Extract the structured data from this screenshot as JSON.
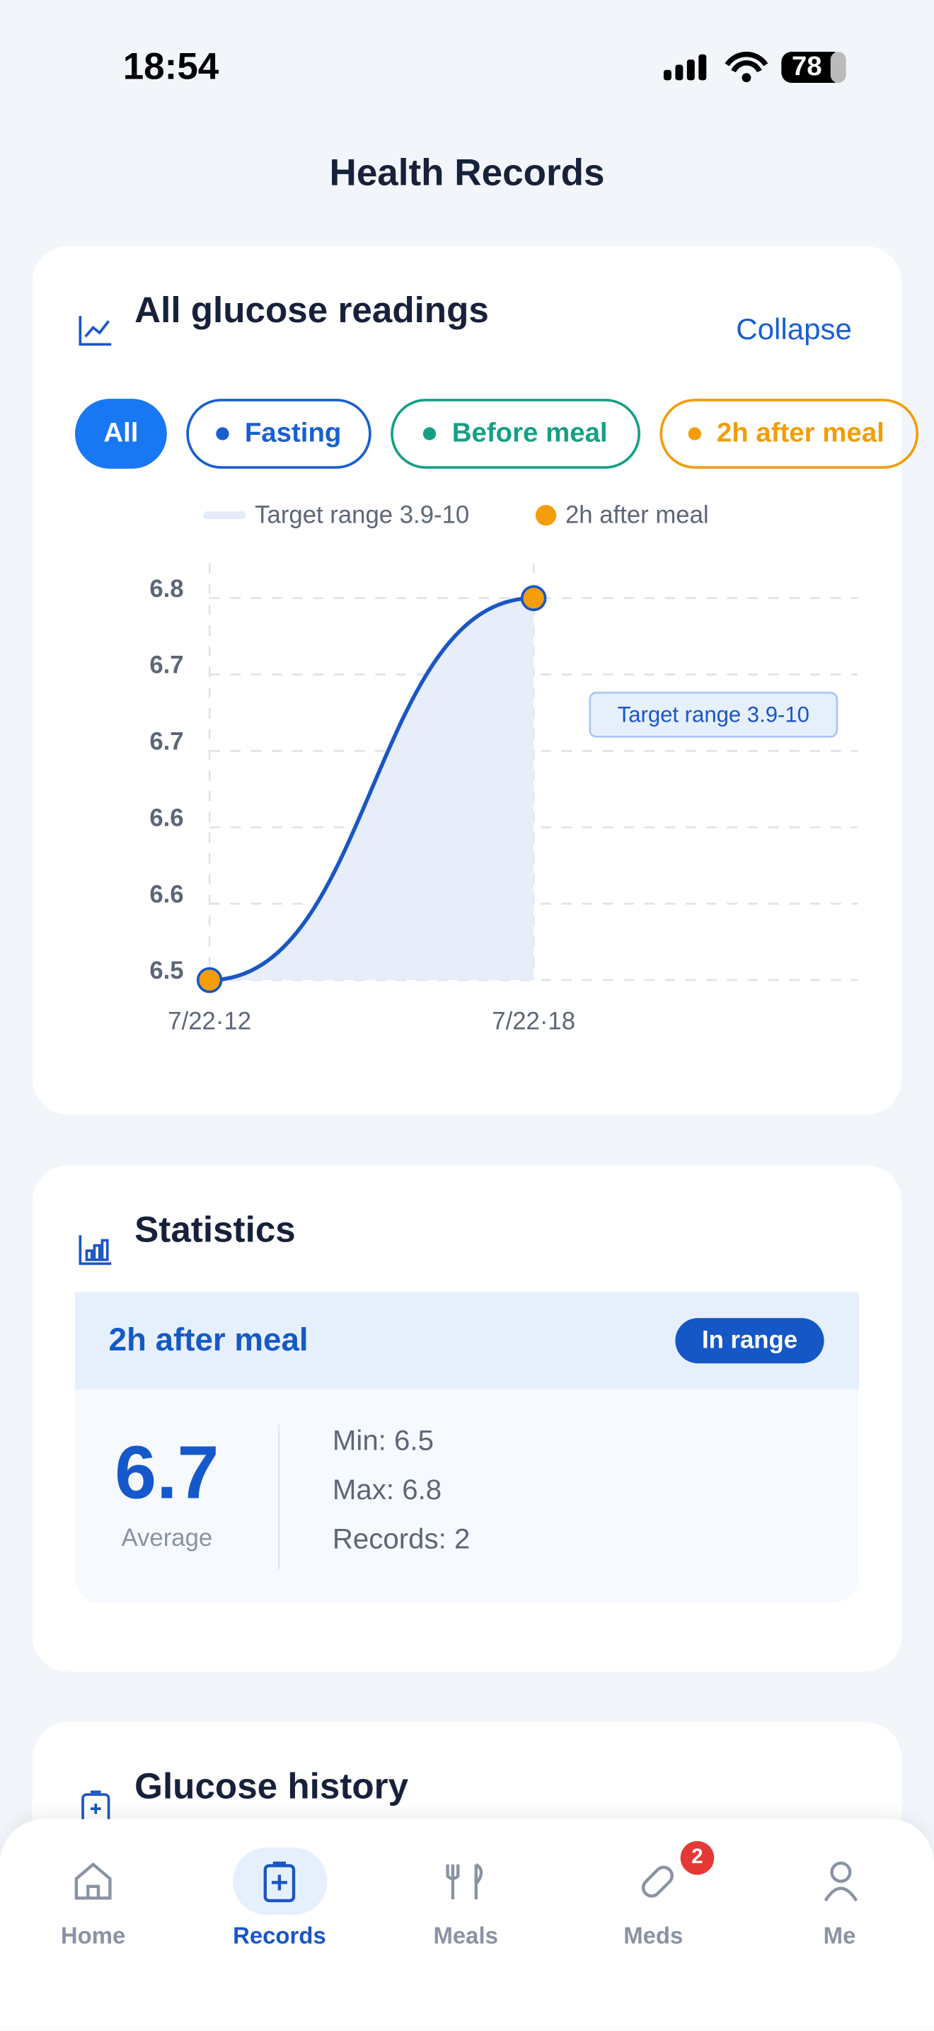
{
  "status_bar": {
    "time": "18:54",
    "battery": "78"
  },
  "header": {
    "title": "Health Records"
  },
  "readings_card": {
    "title": "All glucose readings",
    "collapse": "Collapse",
    "filters": [
      "All",
      "Fasting",
      "Before meal",
      "2h after meal"
    ]
  },
  "chart_data": {
    "type": "line",
    "target_label": "Target range 3.9-10",
    "x": [
      "7/22·12",
      "7/22·18"
    ],
    "series": [
      {
        "name": "2h after meal",
        "color": "#f59e0b",
        "values": [
          6.5,
          6.8
        ]
      }
    ],
    "ylim": [
      6.5,
      6.8
    ],
    "yticks": [
      6.5,
      {
        "value": 6.56,
        "label": "6.6"
      },
      {
        "value": 6.62,
        "label": "6.6"
      },
      {
        "value": 6.68,
        "label": "6.7"
      },
      {
        "value": 6.74,
        "label": "6.7"
      },
      6.8
    ],
    "grid": true,
    "line_color": "#1a56c4",
    "area_color": "#e4ecf9"
  },
  "statistics": {
    "title": "Statistics",
    "label": "2h after meal",
    "badge": "In range",
    "average": "6.7",
    "average_label": "Average",
    "min": "Min: 6.5",
    "max": "Max: 6.8",
    "records": "Records: 2"
  },
  "history": {
    "title": "Glucose history"
  },
  "nav": {
    "items": [
      "Home",
      "Records",
      "Meals",
      "Meds",
      "Me"
    ],
    "meds_badge": "2"
  }
}
